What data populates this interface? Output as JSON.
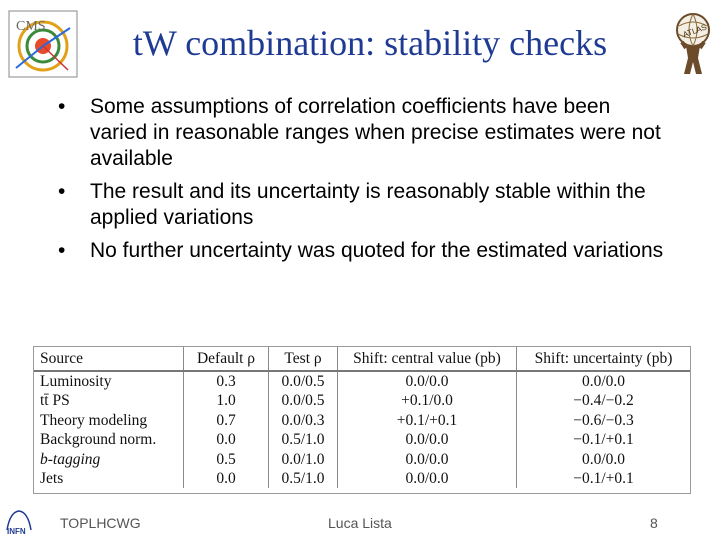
{
  "slide": {
    "title": "tW combination: stability checks",
    "bullets": [
      "Some assumptions of correlation coefficients have been varied in reasonable ranges when precise estimates were not available",
      "The result and its uncertainty is reasonably stable within the applied variations",
      "No further uncertainty was quoted for the estimated variations"
    ]
  },
  "table": {
    "headers": [
      "Source",
      "Default ρ",
      "Test ρ",
      "Shift: central value (pb)",
      "Shift: uncertainty (pb)"
    ],
    "rows": [
      [
        "Luminosity",
        "0.3",
        "0.0/0.5",
        "0.0/0.0",
        "0.0/0.0"
      ],
      [
        "tt̄ PS",
        "1.0",
        "0.0/0.5",
        "+0.1/0.0",
        "−0.4/−0.2"
      ],
      [
        "Theory modeling",
        "0.7",
        "0.0/0.3",
        "+0.1/+0.1",
        "−0.6/−0.3"
      ],
      [
        "Background norm.",
        "0.0",
        "0.5/1.0",
        "0.0/0.0",
        "−0.1/+0.1"
      ],
      [
        "b-tagging",
        "0.5",
        "0.0/1.0",
        "0.0/0.0",
        "0.0/0.0"
      ],
      [
        "Jets",
        "0.0",
        "0.5/1.0",
        "0.0/0.0",
        "−0.1/+0.1"
      ]
    ]
  },
  "footer": {
    "left": "TOPLHCWG",
    "center": "Luca Lista",
    "page": "8"
  },
  "logos": {
    "cms": "CMS",
    "atlas": "ATLAS",
    "infn": "INFN"
  },
  "colors": {
    "title": "#1f3a93"
  }
}
